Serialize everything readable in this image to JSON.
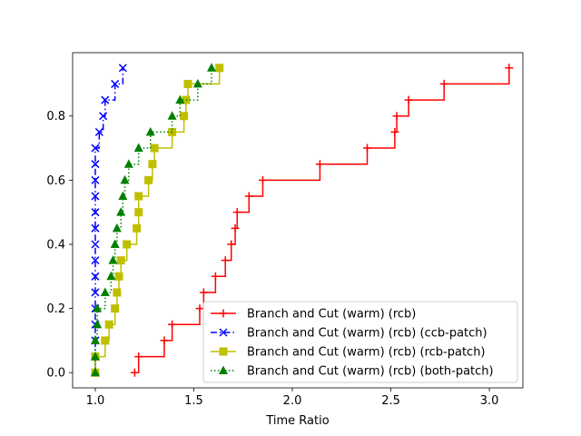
{
  "chart_data": {
    "type": "line",
    "xlabel": "Time Ratio",
    "ylabel": "",
    "xlim": [
      0.885,
      3.17
    ],
    "ylim": [
      -0.0475,
      0.9975
    ],
    "xticks": [
      1.0,
      1.5,
      2.0,
      2.5,
      3.0
    ],
    "xtick_labels": [
      "1.0",
      "1.5",
      "2.0",
      "2.5",
      "3.0"
    ],
    "yticks": [
      0.0,
      0.2,
      0.4,
      0.6,
      0.8
    ],
    "ytick_labels": [
      "0.0",
      "0.2",
      "0.4",
      "0.6",
      "0.8"
    ],
    "grid": false,
    "legend_position": "lower-right",
    "series": [
      {
        "name": "Branch and Cut (warm) (rcb)",
        "color": "#ff0000",
        "marker": "plus",
        "linestyle": "solid",
        "x": [
          1.2,
          1.22,
          1.35,
          1.39,
          1.53,
          1.55,
          1.61,
          1.66,
          1.69,
          1.71,
          1.72,
          1.78,
          1.85,
          2.14,
          2.38,
          2.52,
          2.53,
          2.59,
          2.77,
          3.1
        ],
        "y": [
          0.0,
          0.05,
          0.1,
          0.15,
          0.2,
          0.25,
          0.3,
          0.35,
          0.4,
          0.45,
          0.5,
          0.55,
          0.6,
          0.65,
          0.7,
          0.75,
          0.8,
          0.85,
          0.9,
          0.95
        ]
      },
      {
        "name": "Branch and Cut (warm) (rcb) (ccb-patch)",
        "color": "#0000ff",
        "marker": "x",
        "linestyle": "dashdot",
        "x": [
          1.0,
          1.0,
          1.0,
          1.0,
          1.0,
          1.0,
          1.0,
          1.0,
          1.0,
          1.0,
          1.0,
          1.0,
          1.0,
          1.0,
          1.0,
          1.02,
          1.04,
          1.05,
          1.1,
          1.14
        ],
        "y": [
          0.0,
          0.05,
          0.1,
          0.15,
          0.2,
          0.25,
          0.3,
          0.35,
          0.4,
          0.45,
          0.5,
          0.55,
          0.6,
          0.65,
          0.7,
          0.75,
          0.8,
          0.85,
          0.9,
          0.95
        ]
      },
      {
        "name": "Branch and Cut (warm) (rcb) (rcb-patch)",
        "color": "#bfbf00",
        "marker": "square",
        "linestyle": "solid",
        "x": [
          1.0,
          1.0,
          1.05,
          1.07,
          1.1,
          1.11,
          1.12,
          1.13,
          1.16,
          1.21,
          1.22,
          1.22,
          1.27,
          1.29,
          1.3,
          1.39,
          1.45,
          1.46,
          1.47,
          1.63
        ],
        "y": [
          0.0,
          0.05,
          0.1,
          0.15,
          0.2,
          0.25,
          0.3,
          0.35,
          0.4,
          0.45,
          0.5,
          0.55,
          0.6,
          0.65,
          0.7,
          0.75,
          0.8,
          0.85,
          0.9,
          0.95
        ]
      },
      {
        "name": "Branch and Cut (warm) (rcb) (both-patch)",
        "color": "#008000",
        "marker": "triangle",
        "linestyle": "dotted",
        "x": [
          1.0,
          1.0,
          1.0,
          1.01,
          1.01,
          1.05,
          1.08,
          1.09,
          1.1,
          1.11,
          1.13,
          1.14,
          1.15,
          1.17,
          1.22,
          1.28,
          1.39,
          1.43,
          1.52,
          1.59
        ],
        "y": [
          0.0,
          0.05,
          0.1,
          0.15,
          0.2,
          0.25,
          0.3,
          0.35,
          0.4,
          0.45,
          0.5,
          0.55,
          0.6,
          0.65,
          0.7,
          0.75,
          0.8,
          0.85,
          0.9,
          0.95
        ]
      }
    ]
  }
}
